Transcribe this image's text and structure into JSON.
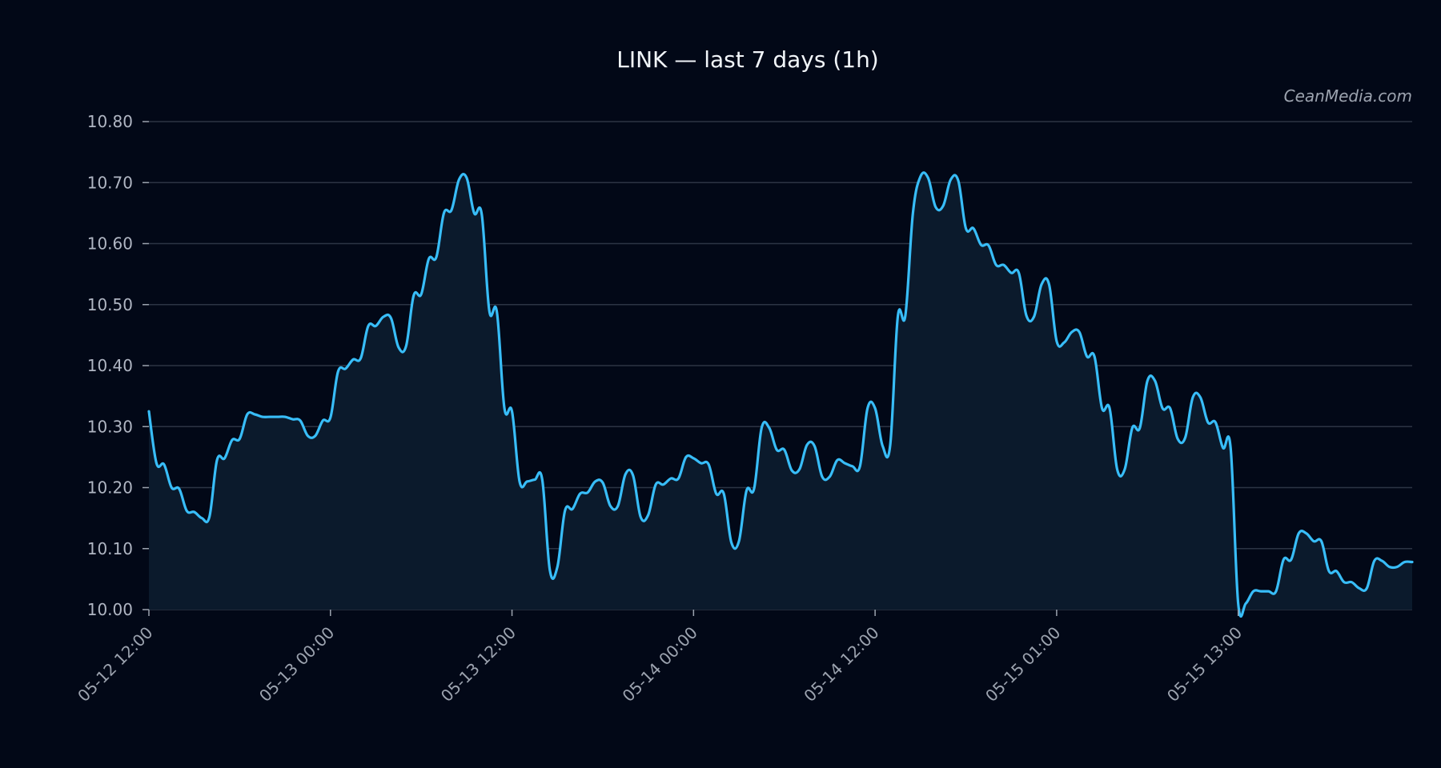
{
  "colors": {
    "background": "#020817",
    "line": "#38bdf8",
    "area_fill": "#0b1a2c",
    "grid": "#2c3444",
    "text": "#f1f5f9",
    "muted_text": "#9ca3af"
  },
  "chart_data": {
    "type": "area",
    "title": "LINK — last 7 days (1h)",
    "watermark": "CeanMedia.com",
    "xlabel": "",
    "ylabel": "",
    "ylim": [
      10.0,
      10.8
    ],
    "grid": "horizontal",
    "legend": "none",
    "y_ticks": [
      10.0,
      10.1,
      10.2,
      10.3,
      10.4,
      10.5,
      10.6,
      10.7,
      10.8
    ],
    "y_tick_labels": [
      "10.00",
      "10.10",
      "10.20",
      "10.30",
      "10.40",
      "10.50",
      "10.60",
      "10.70",
      "10.80"
    ],
    "x_ticks": [
      {
        "index": 0,
        "label": "05-12 12:00"
      },
      {
        "index": 24,
        "label": "05-13 00:00"
      },
      {
        "index": 48,
        "label": "05-13 12:00"
      },
      {
        "index": 72,
        "label": "05-14 00:00"
      },
      {
        "index": 96,
        "label": "05-14 12:00"
      },
      {
        "index": 120,
        "label": "05-15 01:00"
      },
      {
        "index": 144,
        "label": "05-15 13:00"
      }
    ],
    "series": [
      {
        "values": [
          10.325,
          10.24,
          10.238,
          10.2,
          10.198,
          10.162,
          10.16,
          10.15,
          10.152,
          10.245,
          10.248,
          10.278,
          10.28,
          10.32,
          10.32,
          10.316,
          10.316,
          10.316,
          10.316,
          10.312,
          10.31,
          10.285,
          10.285,
          10.31,
          10.315,
          10.39,
          10.395,
          10.41,
          10.412,
          10.465,
          10.465,
          10.48,
          10.478,
          10.43,
          10.432,
          10.515,
          10.517,
          10.575,
          10.578,
          10.65,
          10.655,
          10.705,
          10.708,
          10.65,
          10.648,
          10.49,
          10.488,
          10.33,
          10.325,
          10.21,
          10.21,
          10.213,
          10.213,
          10.065,
          10.07,
          10.162,
          10.165,
          10.19,
          10.192,
          10.21,
          10.208,
          10.17,
          10.17,
          10.222,
          10.22,
          10.152,
          10.155,
          10.205,
          10.205,
          10.215,
          10.215,
          10.25,
          10.248,
          10.24,
          10.238,
          10.19,
          10.19,
          10.11,
          10.112,
          10.195,
          10.198,
          10.298,
          10.298,
          10.262,
          10.262,
          10.228,
          10.23,
          10.27,
          10.268,
          10.218,
          10.218,
          10.245,
          10.24,
          10.235,
          10.235,
          10.33,
          10.33,
          10.268,
          10.27,
          10.48,
          10.482,
          10.65,
          10.71,
          10.708,
          10.66,
          10.662,
          10.705,
          10.703,
          10.625,
          10.625,
          10.598,
          10.597,
          10.565,
          10.565,
          10.552,
          10.552,
          10.482,
          10.48,
          10.533,
          10.533,
          10.44,
          10.438,
          10.455,
          10.455,
          10.415,
          10.415,
          10.33,
          10.33,
          10.23,
          10.23,
          10.298,
          10.298,
          10.375,
          10.375,
          10.33,
          10.33,
          10.28,
          10.282,
          10.348,
          10.348,
          10.307,
          10.307,
          10.265,
          10.265,
          10.01,
          10.01,
          10.03,
          10.03,
          10.03,
          10.03,
          10.082,
          10.082,
          10.125,
          10.125,
          10.112,
          10.112,
          10.063,
          10.063,
          10.045,
          10.045,
          10.035,
          10.035,
          10.08,
          10.08,
          10.07,
          10.07,
          10.078,
          10.078
        ]
      }
    ]
  }
}
